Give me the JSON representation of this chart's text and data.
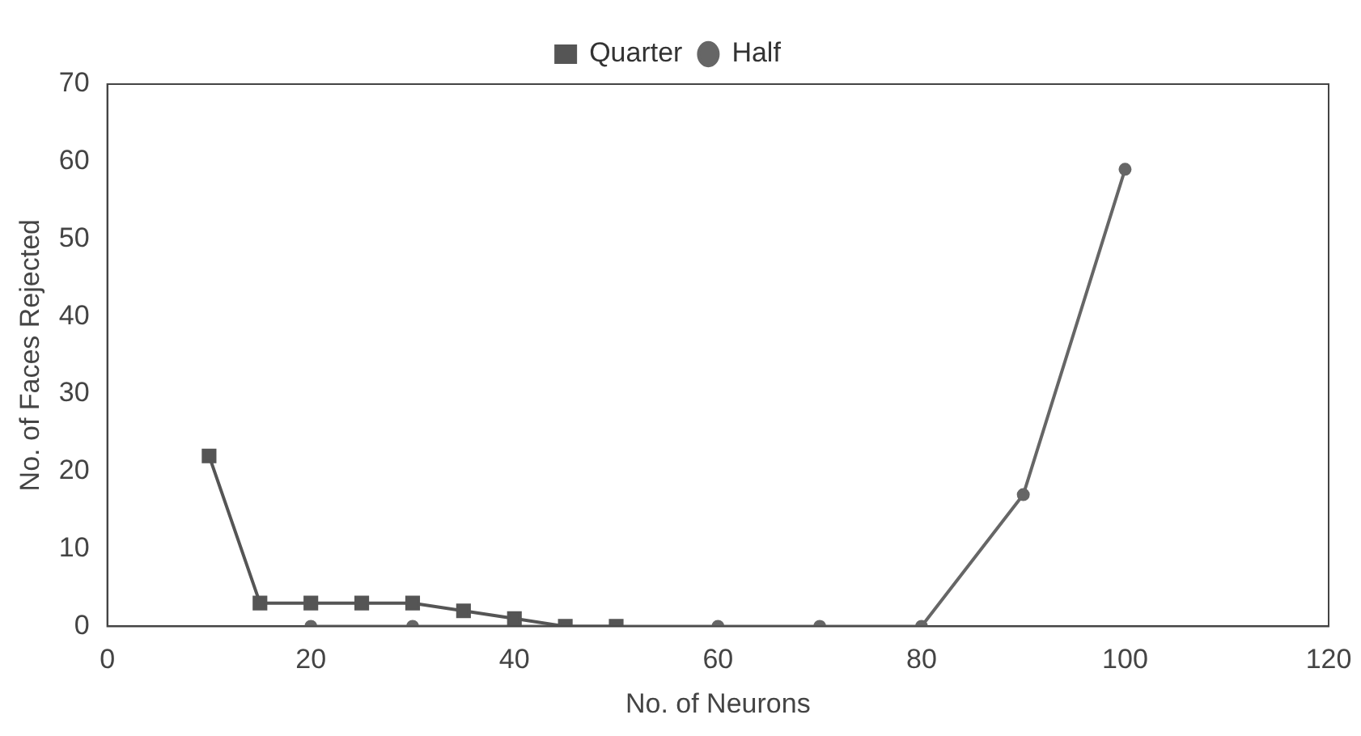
{
  "chart_data": {
    "type": "line",
    "xlabel": "No. of Neurons",
    "ylabel": "No. of Faces Rejected",
    "xlim": [
      0,
      120
    ],
    "xticks": [
      0,
      20,
      40,
      60,
      80,
      100,
      120
    ],
    "ylim": [
      0,
      70
    ],
    "yticks": [
      0,
      10,
      20,
      30,
      40,
      50,
      60,
      70
    ],
    "grid": false,
    "legend": "top",
    "series": [
      {
        "name": "Quarter",
        "color": "#555555",
        "marker": "square",
        "x": [
          10,
          15,
          20,
          25,
          30,
          35,
          40,
          45,
          50
        ],
        "values": [
          22,
          3,
          3,
          3,
          3,
          2,
          1,
          0,
          0
        ]
      },
      {
        "name": "Half",
        "color": "#666666",
        "marker": "circle",
        "x": [
          20,
          30,
          40,
          60,
          70,
          80,
          90,
          100
        ],
        "values": [
          0,
          0,
          0,
          0,
          0,
          0,
          17,
          59
        ]
      }
    ]
  }
}
